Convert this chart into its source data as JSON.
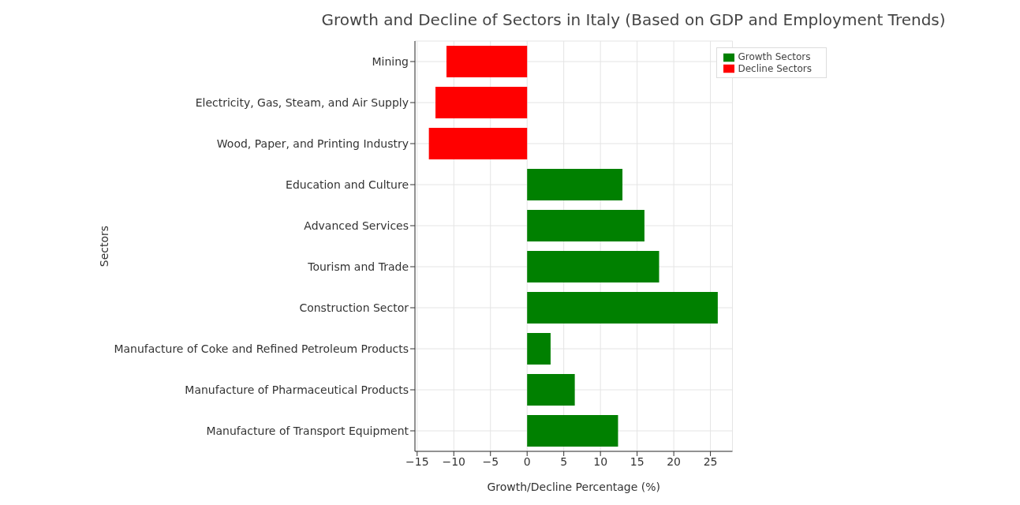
{
  "chart_data": {
    "type": "bar",
    "orientation": "horizontal",
    "title": "Growth and Decline of Sectors in Italy (Based on GDP and Employment Trends)",
    "xlabel": "Growth/Decline Percentage (%)",
    "ylabel": "Sectors",
    "categories": [
      "Mining",
      "Electricity, Gas, Steam, and Air Supply",
      "Wood, Paper, and Printing Industry",
      "Education and Culture",
      "Advanced Services",
      "Tourism and Trade",
      "Construction Sector",
      "Manufacture of Coke and Refined Petroleum Products",
      "Manufacture of Pharmaceutical Products",
      "Manufacture of Transport Equipment"
    ],
    "series": [
      {
        "name": "Growth Sectors",
        "color": "#008000",
        "values": [
          null,
          null,
          null,
          13,
          16,
          18,
          26,
          3.2,
          6.5,
          12.4
        ]
      },
      {
        "name": "Decline Sectors",
        "color": "#ff0000",
        "values": [
          -11,
          -12.5,
          -13.4,
          null,
          null,
          null,
          null,
          null,
          null,
          null
        ]
      }
    ],
    "xlim": [
      -15.3,
      28
    ],
    "xticks": [
      {
        "value": -15,
        "label": "−15"
      },
      {
        "value": -10,
        "label": "−10"
      },
      {
        "value": -5,
        "label": "−5"
      },
      0,
      5,
      10,
      15,
      20,
      25
    ],
    "grid": true,
    "legend": "top right"
  }
}
